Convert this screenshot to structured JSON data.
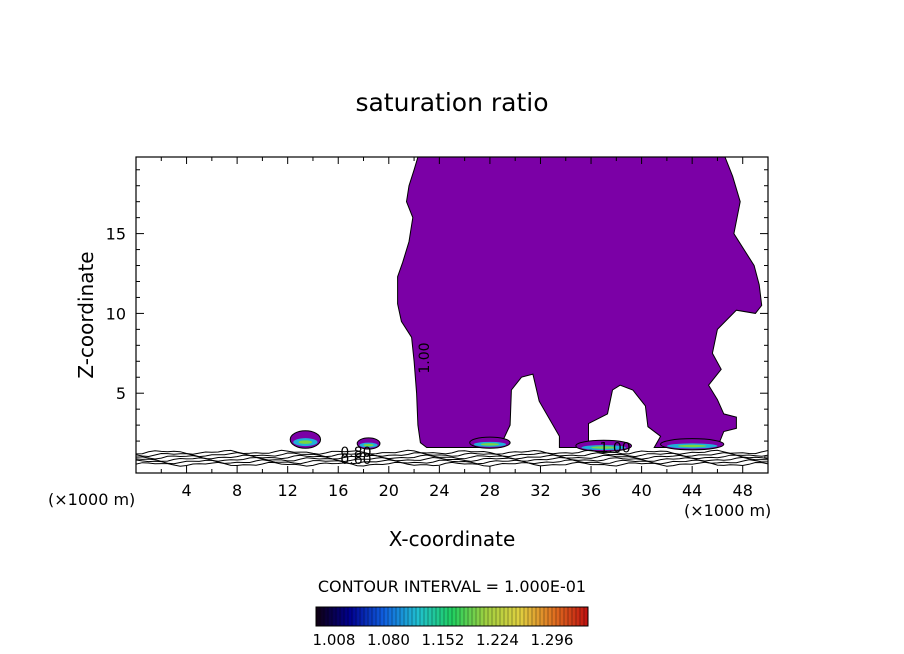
{
  "chart_data": {
    "type": "heatmap",
    "title": "saturation ratio",
    "xlabel": "X-coordinate",
    "ylabel": "Z-coordinate",
    "x_unit_left": "(×1000 m)",
    "x_unit_right": "(×1000 m)",
    "x_range": [
      0,
      50
    ],
    "y_range": [
      0,
      19.8
    ],
    "x_ticks": [
      4,
      8,
      12,
      16,
      20,
      24,
      28,
      32,
      36,
      40,
      44,
      48
    ],
    "y_ticks": [
      5,
      10,
      15
    ],
    "contour_interval_text": "CONTOUR INTERVAL = 1.000E-01",
    "contour_labels": [
      {
        "text": "1.00",
        "x": 23.2,
        "y": 7.2,
        "rotate": -90
      },
      {
        "text": "1.00",
        "x": 37.9,
        "y": 1.3,
        "rotate": 0
      },
      {
        "text": "0.80",
        "x": 17.4,
        "y": 1.0,
        "rotate": 0
      },
      {
        "text": "0.60",
        "x": 17.4,
        "y": 0.55,
        "rotate": 0
      }
    ],
    "colorbar": {
      "ticks": [
        "1.008",
        "1.080",
        "1.152",
        "1.224",
        "1.296"
      ],
      "min": 1.0,
      "max": 1.33,
      "colors": [
        "#100010",
        "#000090",
        "#1060e0",
        "#20c0d0",
        "#20d060",
        "#a0d040",
        "#e0d040",
        "#e07020",
        "#c01010"
      ]
    },
    "fill_color": "#7b00a6",
    "main_region": [
      [
        22.3,
        19.8
      ],
      [
        46.6,
        19.8
      ],
      [
        47.2,
        18.6
      ],
      [
        47.8,
        17.0
      ],
      [
        47.3,
        15.0
      ],
      [
        48.9,
        13.0
      ],
      [
        49.3,
        11.8
      ],
      [
        49.5,
        10.5
      ],
      [
        49.0,
        10.0
      ],
      [
        47.5,
        10.2
      ],
      [
        46.0,
        9.0
      ],
      [
        45.6,
        7.5
      ],
      [
        46.3,
        6.5
      ],
      [
        45.3,
        5.5
      ],
      [
        46.0,
        4.6
      ],
      [
        46.5,
        3.7
      ],
      [
        47.5,
        3.5
      ],
      [
        47.5,
        2.8
      ],
      [
        46.5,
        2.6
      ],
      [
        46.0,
        1.6
      ],
      [
        41.0,
        1.6
      ],
      [
        41.5,
        2.3
      ],
      [
        40.5,
        2.9
      ],
      [
        40.3,
        4.2
      ],
      [
        39.3,
        5.2
      ],
      [
        38.3,
        5.5
      ],
      [
        37.7,
        5.2
      ],
      [
        37.3,
        3.7
      ],
      [
        35.8,
        3.1
      ],
      [
        35.8,
        1.6
      ],
      [
        33.5,
        1.6
      ],
      [
        33.5,
        2.3
      ],
      [
        31.9,
        4.5
      ],
      [
        31.4,
        6.2
      ],
      [
        30.5,
        6.0
      ],
      [
        29.7,
        5.2
      ],
      [
        29.6,
        3.0
      ],
      [
        29.0,
        2.0
      ],
      [
        28.0,
        1.6
      ],
      [
        24.0,
        1.6
      ],
      [
        23.0,
        1.6
      ],
      [
        22.5,
        1.9
      ],
      [
        22.3,
        3.0
      ],
      [
        22.2,
        5.0
      ],
      [
        22.0,
        7.0
      ],
      [
        21.8,
        8.5
      ],
      [
        21.0,
        9.5
      ],
      [
        20.7,
        10.6
      ],
      [
        20.7,
        12.3
      ],
      [
        21.1,
        13.2
      ],
      [
        21.6,
        14.5
      ],
      [
        21.9,
        16.0
      ],
      [
        21.4,
        17.0
      ],
      [
        21.6,
        18.0
      ],
      [
        22.0,
        19.0
      ]
    ],
    "small_cells": [
      {
        "cx": 13.4,
        "cy": 2.1,
        "rx": 1.2,
        "ry": 0.55
      },
      {
        "cx": 18.4,
        "cy": 1.85,
        "rx": 0.9,
        "ry": 0.35
      },
      {
        "cx": 28.0,
        "cy": 1.9,
        "rx": 1.6,
        "ry": 0.35
      },
      {
        "cx": 37.0,
        "cy": 1.7,
        "rx": 2.2,
        "ry": 0.35
      },
      {
        "cx": 44.0,
        "cy": 1.8,
        "rx": 2.5,
        "ry": 0.35
      }
    ],
    "boundary_contours": [
      0.55,
      0.7,
      0.85,
      1.0,
      1.15,
      1.3
    ]
  }
}
